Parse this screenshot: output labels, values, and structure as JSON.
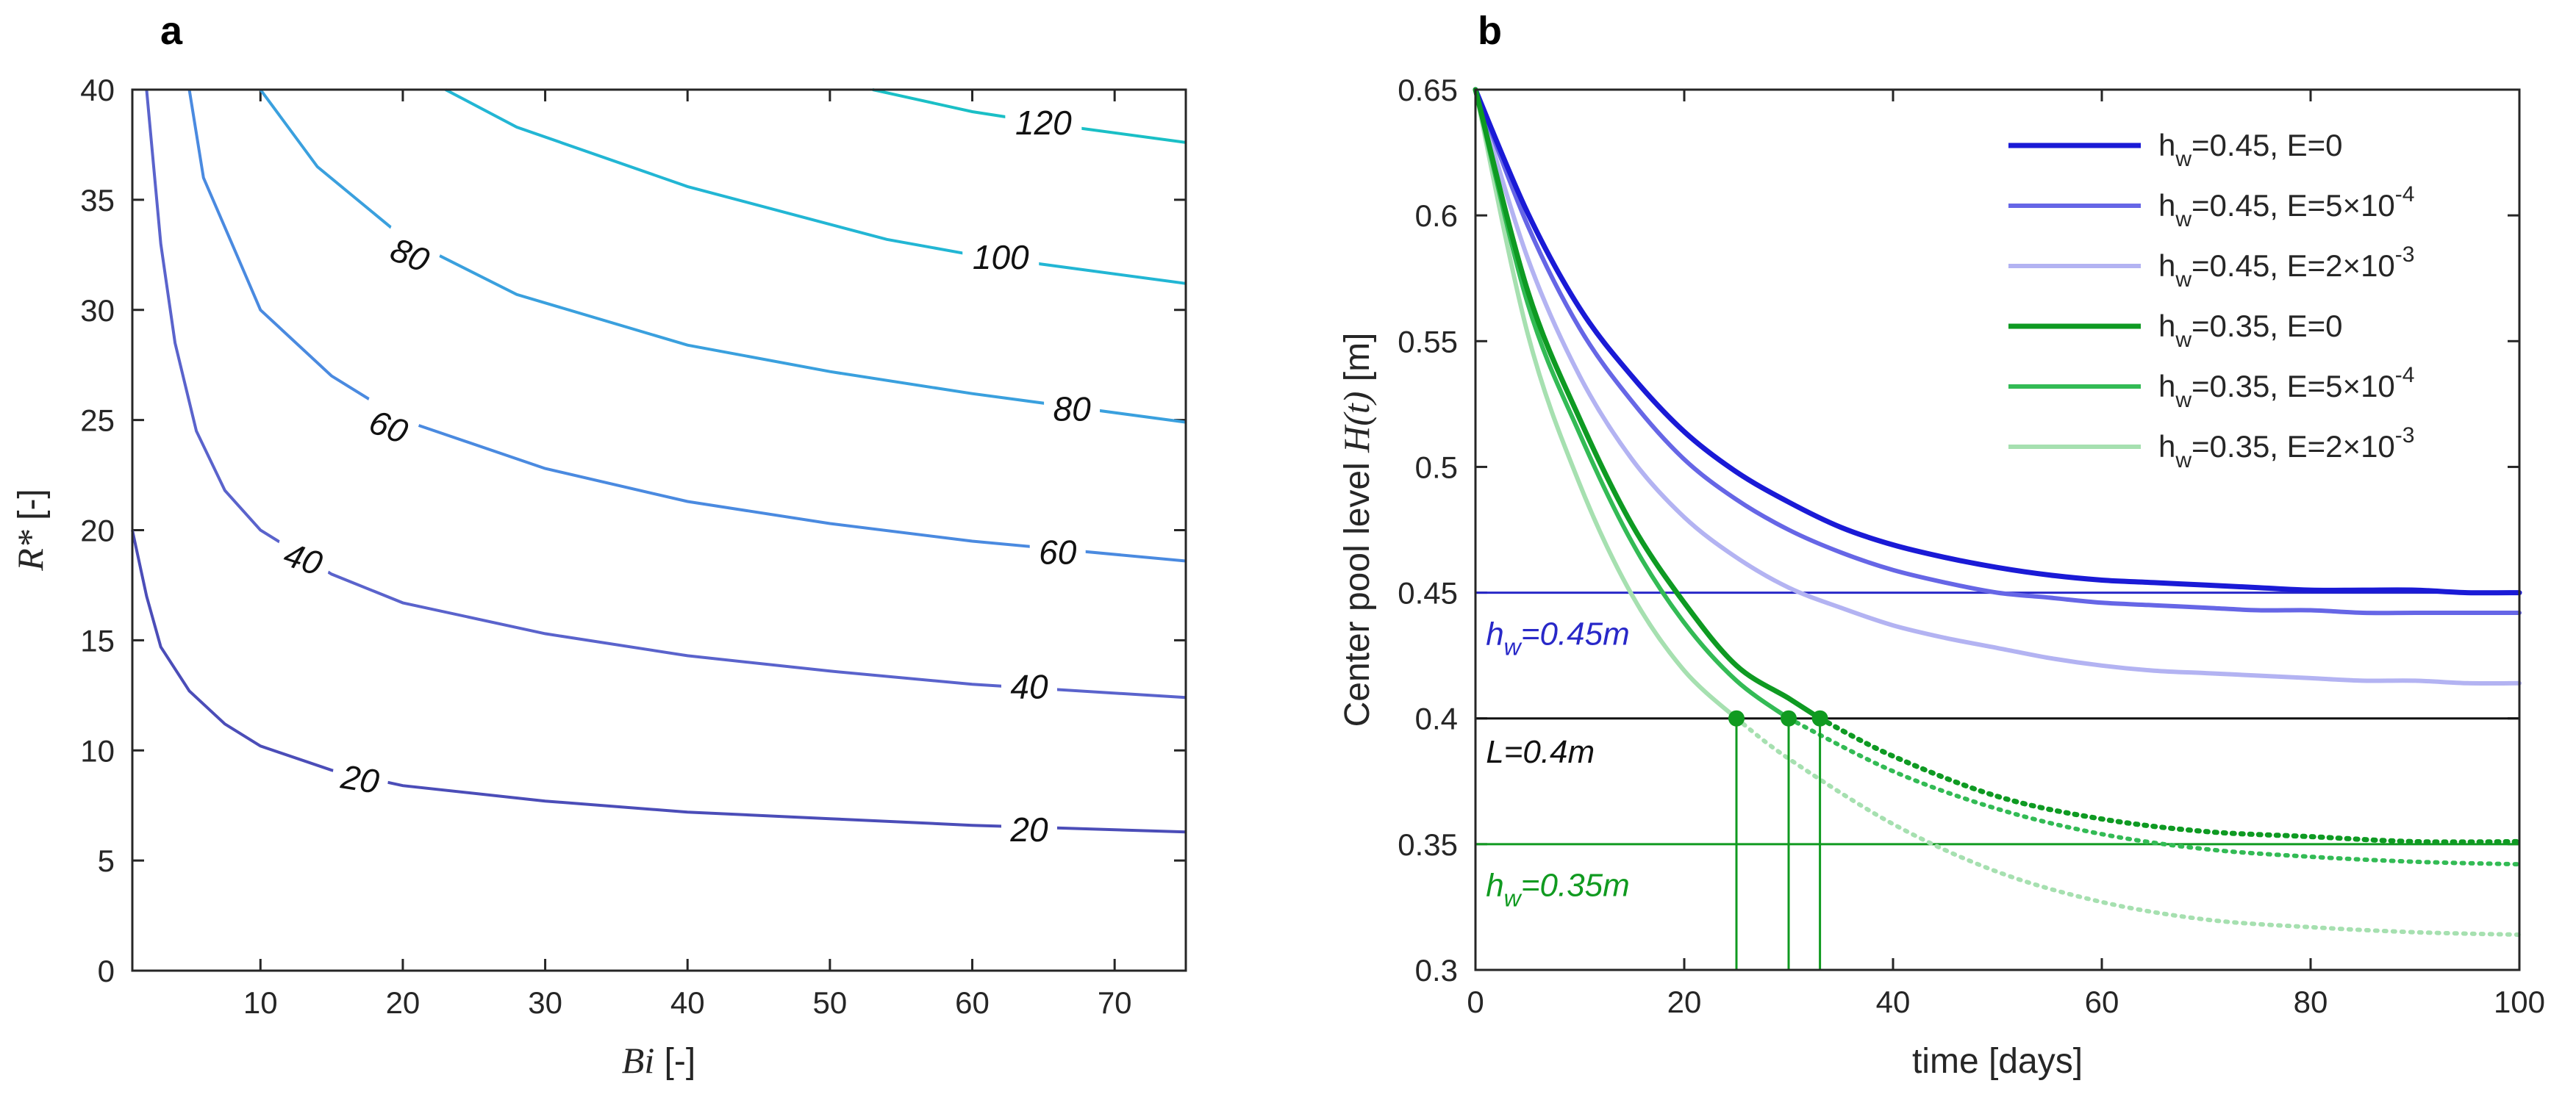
{
  "chart_data": [
    {
      "panel": "a",
      "type": "contour",
      "xlabel_math": "Bi",
      "xlabel_unit": " [-]",
      "ylabel_math": "R*",
      "ylabel_unit": " [-]",
      "xlim": [
        1,
        75
      ],
      "ylim": [
        0,
        40
      ],
      "xticks": [
        10,
        20,
        30,
        40,
        50,
        60,
        70
      ],
      "yticks": [
        0,
        5,
        10,
        15,
        20,
        25,
        30,
        35,
        40
      ],
      "contours": [
        {
          "level": "20",
          "color": "#4B4DB8",
          "points": [
            [
              1,
              20
            ],
            [
              2,
              17
            ],
            [
              3,
              14.7
            ],
            [
              5,
              12.7
            ],
            [
              7.5,
              11.2
            ],
            [
              10,
              10.2
            ],
            [
              15,
              9.1
            ],
            [
              20,
              8.4
            ],
            [
              30,
              7.7
            ],
            [
              40,
              7.2
            ],
            [
              50,
              6.9
            ],
            [
              60,
              6.6
            ],
            [
              75,
              6.3
            ]
          ],
          "labels": [
            {
              "x": 17,
              "y": 8.7,
              "angle": 9
            },
            {
              "x": 64,
              "y": 6.4,
              "angle": 0
            }
          ]
        },
        {
          "level": "40",
          "color": "#5A63CC",
          "points": [
            [
              2,
              40
            ],
            [
              3,
              33
            ],
            [
              4,
              28.5
            ],
            [
              5.5,
              24.5
            ],
            [
              7.5,
              21.8
            ],
            [
              10,
              20
            ],
            [
              15,
              18
            ],
            [
              20,
              16.7
            ],
            [
              30,
              15.3
            ],
            [
              40,
              14.3
            ],
            [
              50,
              13.6
            ],
            [
              60,
              13.0
            ],
            [
              75,
              12.4
            ]
          ],
          "labels": [
            {
              "x": 13,
              "y": 18.7,
              "angle": 18
            },
            {
              "x": 64,
              "y": 12.9,
              "angle": 0
            }
          ]
        },
        {
          "level": "60",
          "color": "#4A8AE0",
          "points": [
            [
              5,
              40
            ],
            [
              6,
              36
            ],
            [
              8,
              33
            ],
            [
              10,
              30
            ],
            [
              15,
              27
            ],
            [
              20,
              25
            ],
            [
              30,
              22.8
            ],
            [
              40,
              21.3
            ],
            [
              50,
              20.3
            ],
            [
              60,
              19.5
            ],
            [
              75,
              18.6
            ]
          ],
          "labels": [
            {
              "x": 19,
              "y": 24.7,
              "angle": 20
            },
            {
              "x": 66,
              "y": 19.0,
              "angle": 0
            }
          ]
        },
        {
          "level": "80",
          "color": "#3AA0DE",
          "points": [
            [
              10,
              40
            ],
            [
              14,
              36.5
            ],
            [
              20,
              33.3
            ],
            [
              28,
              30.7
            ],
            [
              40,
              28.4
            ],
            [
              50,
              27.2
            ],
            [
              60,
              26.2
            ],
            [
              75,
              24.9
            ]
          ],
          "labels": [
            {
              "x": 20.5,
              "y": 32.5,
              "angle": 22
            },
            {
              "x": 67,
              "y": 25.5,
              "angle": 0
            }
          ]
        },
        {
          "level": "100",
          "color": "#22B6D4",
          "points": [
            [
              23,
              40
            ],
            [
              28,
              38.3
            ],
            [
              40,
              35.6
            ],
            [
              54,
              33.2
            ],
            [
              60,
              32.5
            ],
            [
              75,
              31.2
            ]
          ],
          "labels": [
            {
              "x": 62,
              "y": 32.4,
              "angle": 0
            }
          ]
        },
        {
          "level": "120",
          "color": "#1ABFC6",
          "points": [
            [
              53,
              40
            ],
            [
              60,
              39
            ],
            [
              67,
              38.3
            ],
            [
              75,
              37.6
            ]
          ],
          "labels": [
            {
              "x": 65,
              "y": 38.5,
              "angle": 0
            }
          ]
        }
      ]
    },
    {
      "panel": "b",
      "type": "line",
      "xlabel": "time [days]",
      "ylabel_text": "Center pool level ",
      "ylabel_math": "H(t)",
      "ylabel_unit": " [m]",
      "xlim": [
        0,
        100
      ],
      "ylim": [
        0.3,
        0.65
      ],
      "xticks": [
        0,
        20,
        40,
        60,
        80,
        100
      ],
      "yticks": [
        "0.3",
        "0.35",
        "0.4",
        "0.45",
        "0.5",
        "0.55",
        "0.6",
        "0.65"
      ],
      "series": [
        {
          "name_main": "h",
          "name_sub": "w",
          "name_rest": "=0.45, E=0",
          "name_sup": "",
          "color": "#1A1AD6",
          "width": 7,
          "dash_after": null,
          "x": [
            0,
            5,
            10,
            15,
            20,
            25,
            30,
            35,
            40,
            45,
            50,
            55,
            60,
            65,
            70,
            75,
            80,
            85,
            90,
            95,
            100
          ],
          "y": [
            0.65,
            0.601,
            0.563,
            0.536,
            0.514,
            0.498,
            0.486,
            0.476,
            0.469,
            0.464,
            0.46,
            0.457,
            0.455,
            0.454,
            0.453,
            0.452,
            0.451,
            0.451,
            0.451,
            0.45,
            0.45
          ]
        },
        {
          "name_main": "h",
          "name_sub": "w",
          "name_rest": "=0.45, E=5×10",
          "name_sup": "-4",
          "color": "#6666E6",
          "width": 6,
          "dash_after": null,
          "x": [
            0,
            5,
            10,
            15,
            20,
            25,
            30,
            35,
            40,
            45,
            50,
            55,
            60,
            65,
            70,
            75,
            80,
            85,
            90,
            95,
            100
          ],
          "y": [
            0.65,
            0.596,
            0.555,
            0.526,
            0.503,
            0.487,
            0.475,
            0.466,
            0.459,
            0.454,
            0.45,
            0.448,
            0.446,
            0.445,
            0.444,
            0.443,
            0.443,
            0.442,
            0.442,
            0.442,
            0.442
          ]
        },
        {
          "name_main": "h",
          "name_sub": "w",
          "name_rest": "=0.45, E=2×10",
          "name_sup": "-3",
          "color": "#B3B3F2",
          "width": 6,
          "dash_after": null,
          "x": [
            0,
            5,
            10,
            15,
            20,
            25,
            30,
            35,
            40,
            45,
            50,
            55,
            60,
            65,
            70,
            75,
            80,
            85,
            90,
            95,
            100
          ],
          "y": [
            0.65,
            0.583,
            0.536,
            0.503,
            0.48,
            0.464,
            0.452,
            0.444,
            0.437,
            0.432,
            0.428,
            0.424,
            0.421,
            0.419,
            0.418,
            0.417,
            0.416,
            0.415,
            0.415,
            0.414,
            0.414
          ]
        },
        {
          "name_main": "h",
          "name_sub": "w",
          "name_rest": "=0.35, E=0",
          "name_sup": "",
          "color": "#0E9A22",
          "width": 7,
          "dash_after": 33,
          "x": [
            0,
            5,
            10,
            15,
            20,
            25,
            30,
            33,
            40,
            50,
            60,
            70,
            80,
            90,
            100
          ],
          "y": [
            0.65,
            0.57,
            0.519,
            0.477,
            0.446,
            0.421,
            0.408,
            0.4,
            0.385,
            0.369,
            0.36,
            0.355,
            0.353,
            0.351,
            0.351
          ]
        },
        {
          "name_main": "h",
          "name_sub": "w",
          "name_rest": "=0.35, E=5×10",
          "name_sup": "-4",
          "color": "#33BB55",
          "width": 6,
          "dash_after": 30,
          "x": [
            0,
            5,
            10,
            15,
            20,
            25,
            30,
            40,
            50,
            60,
            70,
            80,
            90,
            100
          ],
          "y": [
            0.65,
            0.565,
            0.513,
            0.47,
            0.438,
            0.415,
            0.4,
            0.379,
            0.364,
            0.354,
            0.348,
            0.345,
            0.343,
            0.342
          ]
        },
        {
          "name_main": "h",
          "name_sub": "w",
          "name_rest": "=0.35, E=2×10",
          "name_sup": "-3",
          "color": "#A6E0B0",
          "width": 6,
          "dash_after": 25,
          "x": [
            0,
            5,
            10,
            15,
            20,
            25,
            30,
            40,
            50,
            60,
            70,
            80,
            90,
            100
          ],
          "y": [
            0.65,
            0.553,
            0.493,
            0.449,
            0.419,
            0.4,
            0.384,
            0.358,
            0.339,
            0.327,
            0.32,
            0.317,
            0.315,
            0.314
          ]
        }
      ],
      "hlines": [
        {
          "y": 0.45,
          "color": "#2828C8",
          "label_main": "h",
          "label_sub": "w",
          "label_rest": "=0.45m",
          "label_x": 1,
          "label_y": 0.434
        },
        {
          "y": 0.4,
          "color": "#111111",
          "label_main": "L=0.4m",
          "label_sub": "",
          "label_rest": "",
          "label_x": 1,
          "label_y": 0.387
        },
        {
          "y": 0.35,
          "color": "#109A20",
          "label_main": "h",
          "label_sub": "w",
          "label_rest": "=0.35m",
          "label_x": 1,
          "label_y": 0.334
        }
      ],
      "crossings": [
        25,
        30,
        33
      ],
      "crossing_level": 0.4,
      "crossing_color": "#109A20",
      "legend": "top-right"
    }
  ]
}
